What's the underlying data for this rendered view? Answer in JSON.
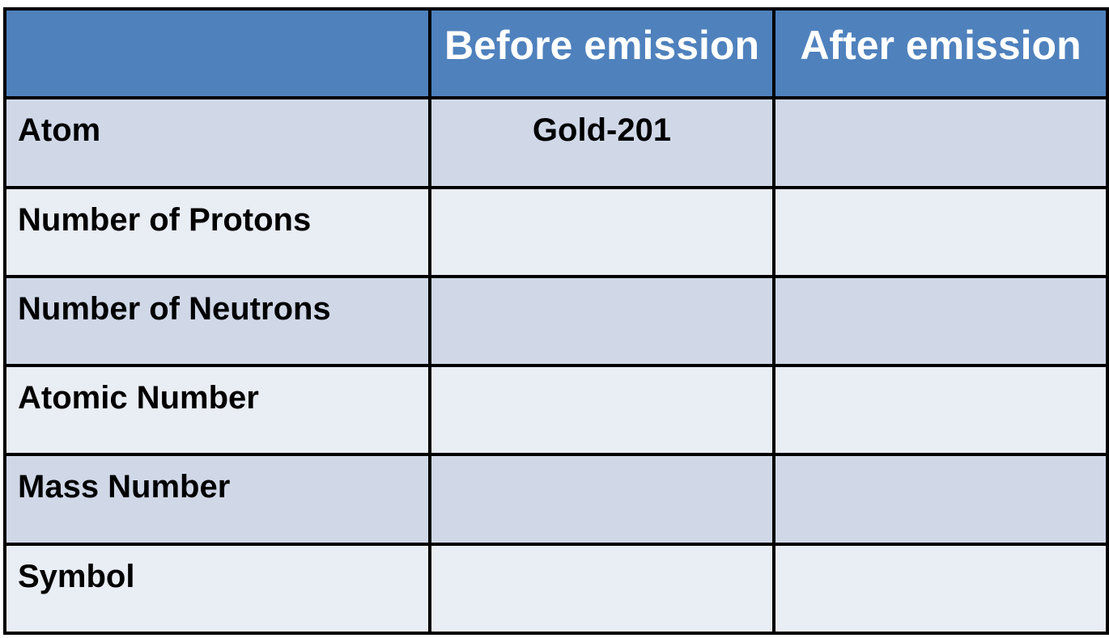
{
  "table": {
    "headers": [
      "",
      "Before emission",
      "After emission"
    ],
    "rows": [
      {
        "label": "Atom",
        "before": "Gold-201",
        "after": ""
      },
      {
        "label": "Number of Protons",
        "before": "",
        "after": ""
      },
      {
        "label": "Number of Neutrons",
        "before": "",
        "after": ""
      },
      {
        "label": "Atomic Number",
        "before": "",
        "after": ""
      },
      {
        "label": "Mass Number",
        "before": "",
        "after": ""
      },
      {
        "label": "Symbol",
        "before": "",
        "after": ""
      }
    ],
    "colors": {
      "header_bg": "#4f81bd",
      "header_text": "#ffffff",
      "row_dark": "#d0d8e8",
      "row_light": "#e9edf4",
      "border": "#000000"
    }
  }
}
